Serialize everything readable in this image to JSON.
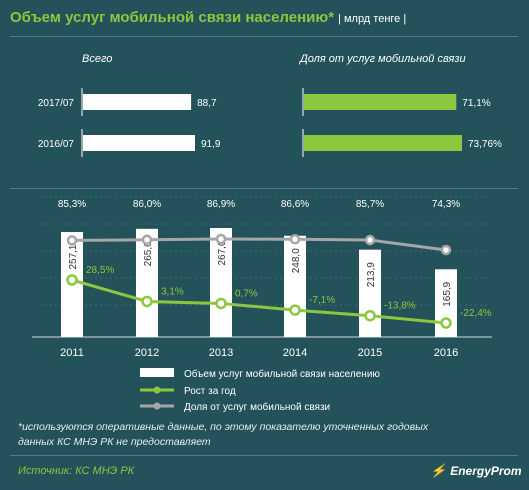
{
  "header": {
    "title": "Объем услуг мобильной связи населению*",
    "unit": "| млрд тенге |"
  },
  "top_panels": {
    "left_title": "Всего",
    "right_title": "Доля от услуг мобильной связи",
    "rows": [
      {
        "label": "2017/07",
        "total": 88.7,
        "total_label": "88,7",
        "share": 71.1,
        "share_label": "71,1%"
      },
      {
        "label": "2016/07",
        "total": 91.9,
        "total_label": "91,9",
        "share": 73.76,
        "share_label": "73,76%"
      }
    ]
  },
  "chart_data": {
    "type": "bar",
    "categories": [
      "2011",
      "2012",
      "2013",
      "2014",
      "2015",
      "2016"
    ],
    "series": [
      {
        "name": "Объем услуг мобильной связи населению",
        "type": "bar",
        "values": [
          257.1,
          265.0,
          267.0,
          248.0,
          213.9,
          165.9
        ],
        "labels": [
          "257,1",
          "265,0",
          "267,0",
          "248,0",
          "213,9",
          "165,9"
        ],
        "color": "#ffffff"
      },
      {
        "name": "Рост за год",
        "type": "line",
        "values": [
          28.5,
          3.1,
          0.7,
          -7.1,
          -13.8,
          -22.4
        ],
        "labels": [
          "28,5%",
          "3,1%",
          "0,7%",
          "-7,1%",
          "-13,8%",
          "-22,4%"
        ],
        "color": "#8dc63f"
      },
      {
        "name": "Доля от услуг мобильной связи",
        "type": "line",
        "values": [
          85.3,
          86.0,
          86.9,
          86.6,
          85.7,
          74.3
        ],
        "labels": [
          "85,3%",
          "86,0%",
          "86,9%",
          "86,6%",
          "85,7%",
          "74,3%"
        ],
        "color": "#a6a6a6"
      }
    ],
    "legend_position": "bottom"
  },
  "footer": {
    "note": "*используются оперативные данные, по этому показателю уточненных годовых данных КС МНЭ РК не предоставляет",
    "source": "Источник: КС МНЭ РК",
    "brand": "EnergyProm"
  }
}
